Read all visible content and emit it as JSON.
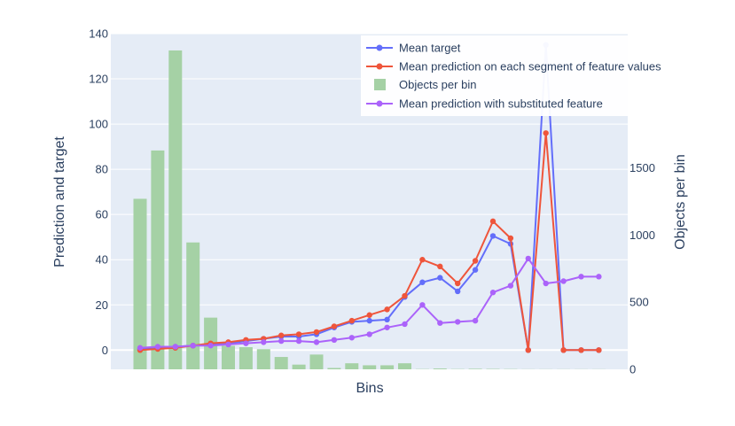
{
  "chart_data": {
    "type": "bar+line",
    "xlabel": "Bins",
    "ylabel_left": "Prediction and target",
    "ylabel_right": "Objects per bin",
    "ylim_left": [
      -8.5,
      140
    ],
    "ylim_right": [
      0,
      2500
    ],
    "yticks_left": [
      0,
      20,
      40,
      60,
      80,
      100,
      120,
      140
    ],
    "yticks_right": [
      0,
      500,
      1000,
      1500
    ],
    "grid": true,
    "legend_position": "top-right",
    "n_bins": 27,
    "colors": {
      "target": "#636efa",
      "prediction": "#ef553b",
      "bars": "#a5d1a5",
      "substituted": "#ab63fa",
      "plot_bg": "#e5ecf6",
      "grid": "#ffffff"
    },
    "series": [
      {
        "key": "target",
        "name": "Mean target",
        "kind": "line",
        "values": [
          0.5,
          1,
          1.5,
          2,
          2.5,
          3,
          4,
          5,
          6,
          6,
          7,
          10,
          12.5,
          13,
          13.5,
          23.5,
          30,
          32,
          26,
          35.5,
          50.5,
          47,
          0,
          135,
          0,
          0,
          0
        ]
      },
      {
        "key": "prediction",
        "name": "Mean prediction on each segment of feature values",
        "kind": "line",
        "values": [
          0,
          0.5,
          1,
          2,
          3,
          3.5,
          4.5,
          5,
          6.5,
          7,
          8,
          10.5,
          13,
          15.5,
          18,
          24,
          40,
          37,
          29.5,
          39.5,
          57,
          49.5,
          0,
          96,
          0,
          0,
          0
        ]
      },
      {
        "key": "bars",
        "name": "Objects per bin",
        "kind": "bar",
        "values": [
          1270,
          1630,
          2375,
          945,
          385,
          175,
          165,
          150,
          92,
          35,
          110,
          10,
          45,
          30,
          30,
          45,
          2,
          6,
          2,
          4,
          3,
          2,
          1,
          1,
          1,
          1,
          1
        ]
      },
      {
        "key": "substituted",
        "name": "Mean prediction with substituted feature",
        "kind": "line",
        "values": [
          1,
          1.5,
          1.5,
          2,
          2,
          2.5,
          3,
          3.5,
          4,
          4,
          3.5,
          4.5,
          5.5,
          7,
          10,
          11.5,
          20,
          12,
          12.5,
          13,
          25.5,
          28.5,
          40.5,
          29.5,
          30.5,
          32.5,
          32.5
        ]
      }
    ]
  }
}
